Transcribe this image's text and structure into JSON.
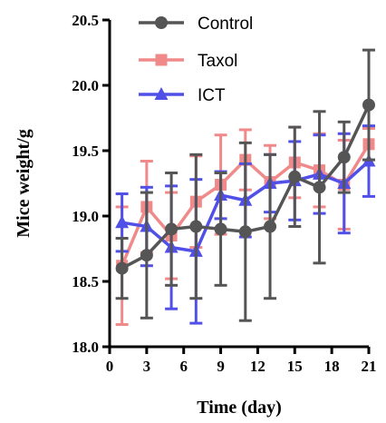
{
  "chart_data": {
    "type": "line",
    "title": "",
    "xlabel": "Time (day)",
    "ylabel": "Mice weight/g",
    "xlim": [
      0,
      21
    ],
    "ylim": [
      18.0,
      20.5
    ],
    "xticks": [
      0,
      3,
      6,
      9,
      12,
      15,
      18,
      21
    ],
    "yticks": [
      18.0,
      18.5,
      19.0,
      19.5,
      20.0,
      20.5
    ],
    "xtick_labels": [
      "0",
      "3",
      "6",
      "9",
      "12",
      "15",
      "18",
      "21"
    ],
    "ytick_labels": [
      "18.0",
      "18.5",
      "19.0",
      "19.5",
      "20.0",
      "20.5"
    ],
    "grid": false,
    "legend_position": "top-left",
    "x": [
      1,
      3,
      5,
      7,
      9,
      11,
      13,
      15,
      17,
      19,
      21
    ],
    "series": [
      {
        "name": "Taxol",
        "color": "#f08a8a",
        "marker": "square",
        "values": [
          18.62,
          19.07,
          18.85,
          19.11,
          19.24,
          19.43,
          19.26,
          19.41,
          19.35,
          19.24,
          19.55
        ],
        "errors": [
          0.45,
          0.35,
          0.33,
          0.35,
          0.38,
          0.23,
          0.28,
          0.27,
          0.28,
          0.34,
          0.12
        ]
      },
      {
        "name": "ICT",
        "color": "#5050e8",
        "marker": "triangle",
        "values": [
          18.95,
          18.92,
          18.76,
          18.73,
          19.16,
          19.12,
          19.25,
          19.27,
          19.32,
          19.25,
          19.42
        ],
        "errors": [
          0.22,
          0.3,
          0.47,
          0.55,
          0.18,
          0.28,
          0.22,
          0.3,
          0.3,
          0.38,
          0.27
        ]
      },
      {
        "name": "Control",
        "color": "#555555",
        "marker": "circle",
        "values": [
          18.6,
          18.7,
          18.9,
          18.92,
          18.9,
          18.88,
          18.92,
          19.3,
          19.22,
          19.45,
          19.85
        ],
        "errors": [
          0.23,
          0.48,
          0.43,
          0.55,
          0.43,
          0.68,
          0.55,
          0.38,
          0.58,
          0.27,
          0.42
        ]
      }
    ],
    "legend_order": [
      "Control",
      "Taxol",
      "ICT"
    ]
  }
}
